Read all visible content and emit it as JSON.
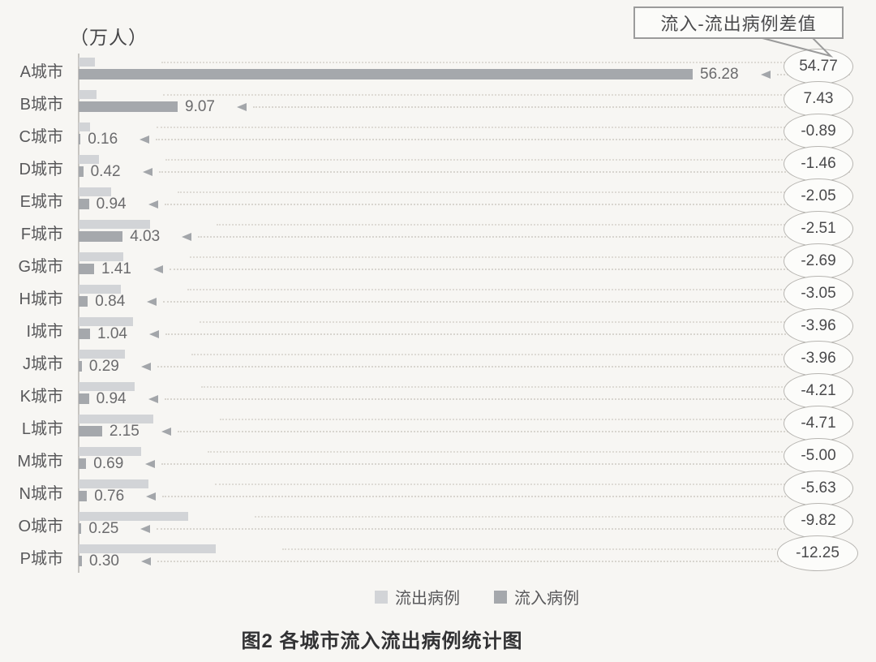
{
  "chart": {
    "unit_label": "（万人）",
    "callout_label": "流入-流出病例差值",
    "title": "图2 各城市流入流出病例统计图",
    "legend": [
      {
        "label": "流出病例",
        "color": "#d2d4d7"
      },
      {
        "label": "流入病例",
        "color": "#a5a8ac"
      }
    ]
  },
  "chart_data": {
    "type": "bar",
    "orientation": "horizontal",
    "title": "图2 各城市流入流出病例统计图",
    "ylabel": "（万人）",
    "xlabel": "",
    "xlim": [
      0,
      60
    ],
    "grid": "dotted-leader-lines",
    "legend_position": "bottom",
    "categories": [
      "A城市",
      "B城市",
      "C城市",
      "D城市",
      "E城市",
      "F城市",
      "G城市",
      "H城市",
      "I城市",
      "J城市",
      "K城市",
      "L城市",
      "M城市",
      "N城市",
      "O城市",
      "P城市"
    ],
    "series": [
      {
        "name": "流出病例",
        "color": "#d2d4d7",
        "values": [
          1.51,
          1.64,
          1.05,
          1.88,
          2.99,
          6.54,
          4.1,
          3.89,
          5.0,
          4.25,
          5.15,
          6.86,
          5.69,
          6.39,
          10.07,
          12.55
        ]
      },
      {
        "name": "流入病例",
        "color": "#a5a8ac",
        "values": [
          56.28,
          9.07,
          0.16,
          0.42,
          0.94,
          4.03,
          1.41,
          0.84,
          1.04,
          0.29,
          0.94,
          2.15,
          0.69,
          0.76,
          0.25,
          0.3
        ]
      }
    ],
    "diff_series": {
      "name": "流入-流出病例差值",
      "values": [
        54.77,
        7.43,
        -0.89,
        -1.46,
        -2.05,
        -2.51,
        -2.69,
        -3.05,
        -3.96,
        -3.96,
        -4.21,
        -4.71,
        -5.0,
        -5.63,
        -9.82,
        -12.25
      ]
    }
  }
}
